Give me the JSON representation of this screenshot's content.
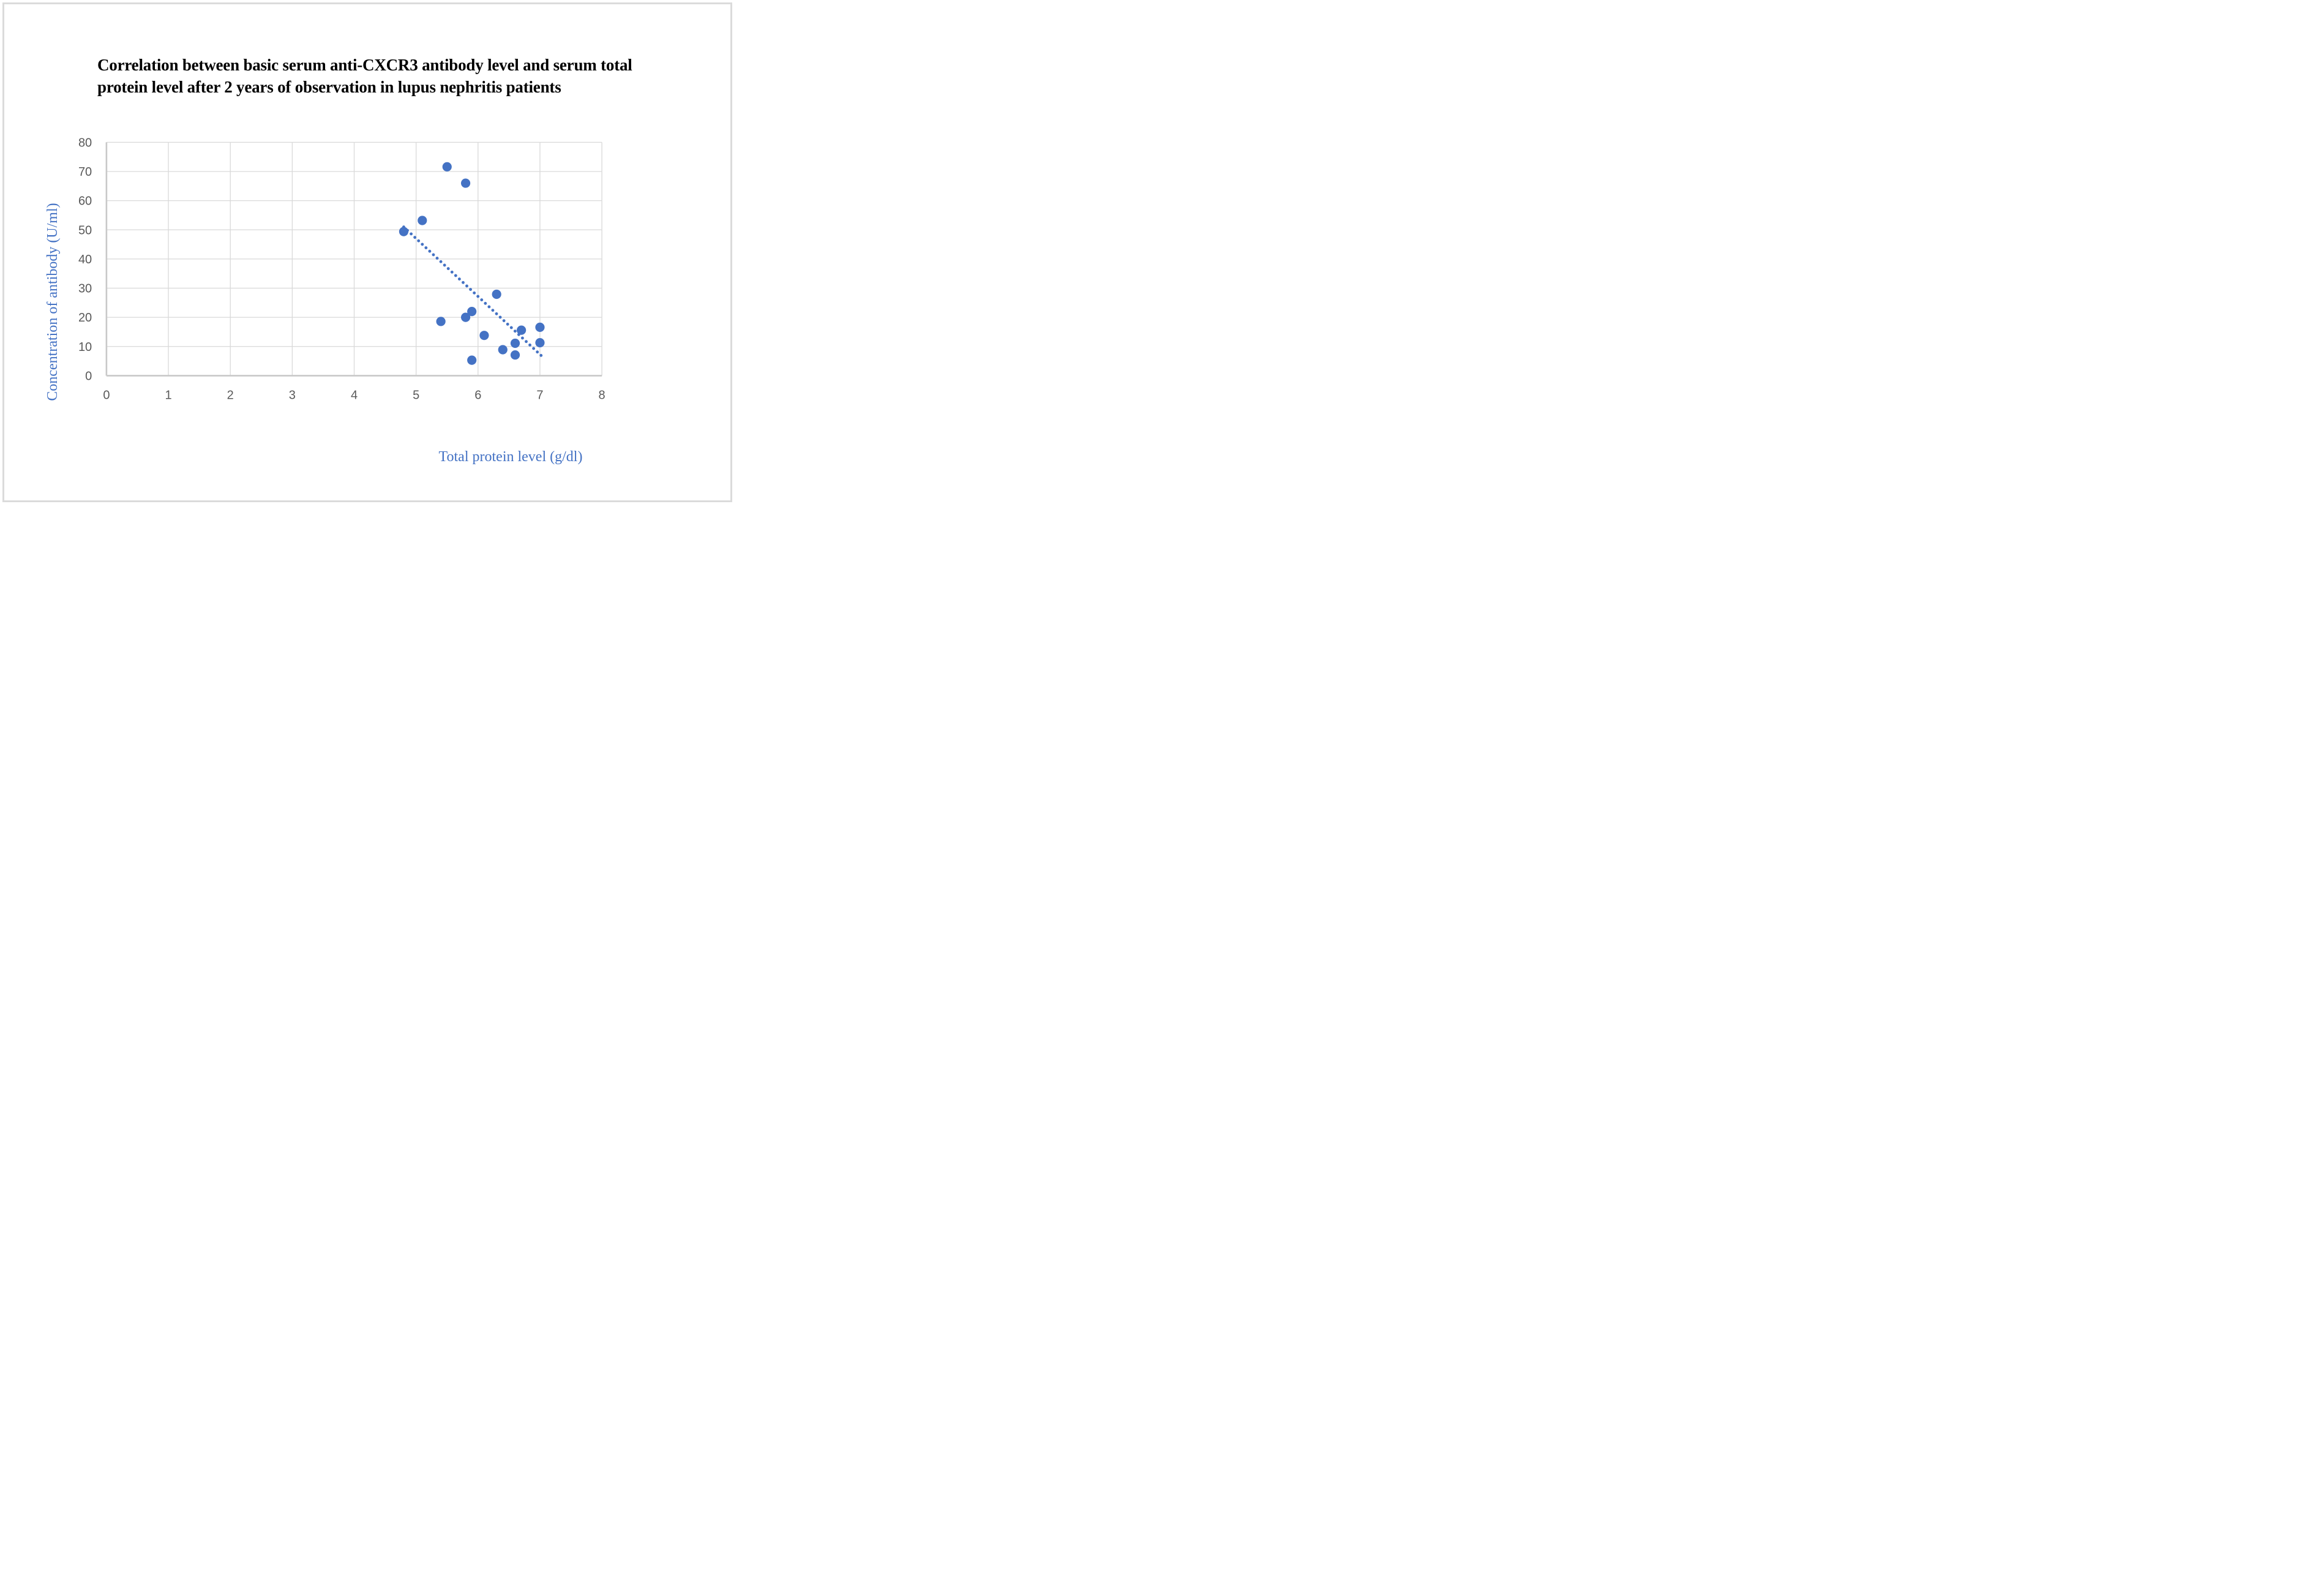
{
  "figure": {
    "background": "#FFFFFF",
    "border_color": "#DBDBDB"
  },
  "colors": {
    "point": "#4472C4",
    "trendline": "#4472C4",
    "gridline": "#D9D9D9",
    "axis_line": "#C9C9C9",
    "tick_label": "#595959",
    "title": "#000000",
    "axis_title": "#4472C4"
  },
  "chart_data": {
    "type": "scatter",
    "title": "Correlation between basic serum anti-CXCR3 antibody level and serum total protein level after 2 years of observation in lupus nephritis patients",
    "title_lines": [
      "Correlation between basic serum anti-CXCR3 antibody level and serum total",
      "protein level after 2 years of observation in lupus nephritis patients"
    ],
    "xlabel": "Total protein level (g/dl)",
    "ylabel": "Concentration of antibody (U/ml)",
    "xlim": [
      0,
      8
    ],
    "ylim": [
      0,
      80
    ],
    "x_ticks": [
      0,
      1,
      2,
      3,
      4,
      5,
      6,
      7,
      8
    ],
    "y_ticks": [
      0,
      10,
      20,
      30,
      40,
      50,
      60,
      70,
      80
    ],
    "grid": true,
    "legend": false,
    "series": [
      {
        "name": "lupus nephritis patients",
        "points": [
          [
            4.8,
            49.4
          ],
          [
            5.1,
            53.2
          ],
          [
            5.4,
            18.6
          ],
          [
            5.5,
            71.6
          ],
          [
            5.8,
            66.0
          ],
          [
            5.8,
            20.0
          ],
          [
            5.9,
            22.0
          ],
          [
            5.9,
            5.3
          ],
          [
            6.1,
            13.8
          ],
          [
            6.3,
            27.9
          ],
          [
            6.4,
            8.9
          ],
          [
            6.6,
            11.1
          ],
          [
            6.6,
            7.1
          ],
          [
            6.7,
            15.6
          ],
          [
            7.0,
            16.6
          ],
          [
            7.0,
            11.3
          ]
        ]
      }
    ],
    "trendline": {
      "type": "linear",
      "style": "dotted",
      "from": [
        4.8,
        51.0
      ],
      "to": [
        7.05,
        6.3
      ]
    }
  }
}
